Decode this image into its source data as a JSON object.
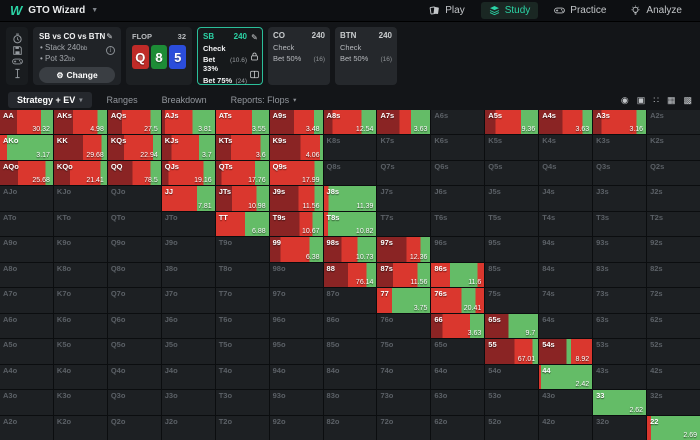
{
  "app": {
    "logo": "W",
    "name": "GTO Wizard"
  },
  "nav": {
    "items": [
      {
        "label": "Play",
        "active": false
      },
      {
        "label": "Study",
        "active": true
      },
      {
        "label": "Practice",
        "active": false
      },
      {
        "label": "Analyze",
        "active": false
      }
    ]
  },
  "sidebar": {
    "icons": [
      "timer-icon",
      "save-icon",
      "gamepad-icon",
      "text-cursor-icon"
    ]
  },
  "config": {
    "title": "SB vs CO vs BTN",
    "bullets": [
      {
        "label": "Stack 240",
        "unit": "bb"
      },
      {
        "label": "Pot 32",
        "unit": "bb"
      }
    ],
    "change_label": "Change"
  },
  "flop": {
    "label": "FLOP",
    "pot": "32",
    "cards": [
      {
        "rank": "Q",
        "suit": "heart",
        "color": "#bf2b28"
      },
      {
        "rank": "8",
        "suit": "club",
        "color": "#1d8c36"
      },
      {
        "rank": "5",
        "suit": "diamond",
        "color": "#2b4ddb"
      }
    ]
  },
  "players": [
    {
      "name": "SB",
      "stack": "240",
      "active": true,
      "actions": [
        {
          "label": "Check",
          "value": ""
        },
        {
          "label": "Bet 33%",
          "value": "(10.6)"
        },
        {
          "label": "Bet 75%",
          "value": "(24)"
        }
      ]
    },
    {
      "name": "CO",
      "stack": "240",
      "active": false,
      "actions": [
        {
          "label": "Check",
          "value": ""
        },
        {
          "label": "Bet 50%",
          "value": "(16)"
        }
      ]
    },
    {
      "name": "BTN",
      "stack": "240",
      "active": false,
      "actions": [
        {
          "label": "Check",
          "value": ""
        },
        {
          "label": "Bet 50%",
          "value": "(16)"
        }
      ]
    }
  ],
  "tabs": [
    {
      "label": "Strategy + EV",
      "active": true,
      "dropdown": true
    },
    {
      "label": "Ranges",
      "active": false,
      "dropdown": false
    },
    {
      "label": "Breakdown",
      "active": false,
      "dropdown": false
    },
    {
      "label": "Reports: Flops",
      "active": false,
      "dropdown": true
    }
  ],
  "view_icons": [
    {
      "name": "strategy-dot-view-icon",
      "glyph": "◉"
    },
    {
      "name": "compact-view-icon",
      "glyph": "▣"
    },
    {
      "name": "dots-view-icon",
      "glyph": "∷"
    },
    {
      "name": "grid-view-icon",
      "glyph": "▦"
    },
    {
      "name": "filled-grid-view-icon",
      "glyph": "▩"
    }
  ],
  "colors": {
    "accent_teal": "#2bd3a5",
    "segments": {
      "dr": "#8a2424",
      "r": "#da372e",
      "g": "#64bc67"
    },
    "fold_bg": "#1d2023"
  },
  "matrix": {
    "rows": [
      [
        {
          "h": "AA",
          "ev": "30.32",
          "seg": "dr32 r45 g23"
        },
        {
          "h": "AKs",
          "ev": "4.98",
          "seg": "dr36 r46 g18"
        },
        {
          "h": "AQs",
          "ev": "27.5",
          "seg": "dr26 r54 g20"
        },
        {
          "h": "AJs",
          "ev": "3.81",
          "seg": "dr6 r52 g42"
        },
        {
          "h": "ATs",
          "ev": "3.55",
          "seg": "r68 g32"
        },
        {
          "h": "A9s",
          "ev": "3.48",
          "seg": "dr45 r38 g17"
        },
        {
          "h": "A8s",
          "ev": "12.54",
          "seg": "dr16 r56 g28"
        },
        {
          "h": "A7s",
          "ev": "3.63",
          "seg": "dr42 r22 g36"
        },
        {
          "h": "A6s"
        },
        {
          "h": "A5s",
          "ev": "9.36",
          "seg": "dr20 r48 g32"
        },
        {
          "h": "A4s",
          "ev": "3.63",
          "seg": "dr44 r38 g18"
        },
        {
          "h": "A3s",
          "ev": "3.16",
          "seg": "dr16 r66 g18"
        },
        {
          "h": "A2s"
        }
      ],
      [
        {
          "h": "AKo",
          "ev": "3.17",
          "seg": "r13 g87"
        },
        {
          "h": "KK",
          "ev": "29.68",
          "seg": "dr55 r35 g10"
        },
        {
          "h": "KQs",
          "ev": "22.94",
          "seg": "dr30 r55 g15"
        },
        {
          "h": "KJs",
          "ev": "3.7",
          "seg": "dr18 r52 g30"
        },
        {
          "h": "KTs",
          "ev": "3.6",
          "seg": "dr28 r56 g16"
        },
        {
          "h": "K9s",
          "ev": "4.06",
          "seg": "dr58 r36 g6"
        },
        {
          "h": "K8s"
        },
        {
          "h": "K7s"
        },
        {
          "h": "K6s"
        },
        {
          "h": "K5s"
        },
        {
          "h": "K4s"
        },
        {
          "h": "K3s"
        },
        {
          "h": "K2s"
        }
      ],
      [
        {
          "h": "AQo",
          "ev": "25.68",
          "seg": "dr34 r52 g14"
        },
        {
          "h": "KQo",
          "ev": "21.41",
          "seg": "dr30 r58 g12"
        },
        {
          "h": "QQ",
          "ev": "78.5",
          "seg": "dr46 r34 g20"
        },
        {
          "h": "QJs",
          "ev": "19.16",
          "seg": "dr12 r66 g22"
        },
        {
          "h": "QTs",
          "ev": "17.76",
          "seg": "dr10 r64 g26"
        },
        {
          "h": "Q9s",
          "ev": "17.99",
          "seg": "r84 g16"
        },
        {
          "h": "Q8s"
        },
        {
          "h": "Q7s"
        },
        {
          "h": "Q6s"
        },
        {
          "h": "Q5s"
        },
        {
          "h": "Q4s"
        },
        {
          "h": "Q3s"
        },
        {
          "h": "Q2s"
        }
      ],
      [
        {
          "h": "AJo"
        },
        {
          "h": "KJo"
        },
        {
          "h": "QJo"
        },
        {
          "h": "JJ",
          "ev": "7.81",
          "seg": "r66 g34"
        },
        {
          "h": "JTs",
          "ev": "10.98",
          "seg": "dr30 r46 g24"
        },
        {
          "h": "J9s",
          "ev": "11.56",
          "seg": "dr54 r30 g16"
        },
        {
          "h": "J8s",
          "ev": "11.39",
          "seg": "r9 g91"
        },
        {
          "h": "J7s"
        },
        {
          "h": "J6s"
        },
        {
          "h": "J5s"
        },
        {
          "h": "J4s"
        },
        {
          "h": "J3s"
        },
        {
          "h": "J2s"
        }
      ],
      [
        {
          "h": "ATo"
        },
        {
          "h": "KTo"
        },
        {
          "h": "QTo"
        },
        {
          "h": "JTo"
        },
        {
          "h": "TT",
          "ev": "6.88",
          "seg": "r55 g45"
        },
        {
          "h": "T9s",
          "ev": "10.67",
          "seg": "dr56 r24 g20"
        },
        {
          "h": "T8s",
          "ev": "10.82",
          "seg": "r8 g92"
        },
        {
          "h": "T7s"
        },
        {
          "h": "T6s"
        },
        {
          "h": "T5s"
        },
        {
          "h": "T4s"
        },
        {
          "h": "T3s"
        },
        {
          "h": "T2s"
        }
      ],
      [
        {
          "h": "A9o"
        },
        {
          "h": "K9o"
        },
        {
          "h": "Q9o"
        },
        {
          "h": "J9o"
        },
        {
          "h": "T9o"
        },
        {
          "h": "99",
          "ev": "6.38",
          "seg": "dr20 r55 g25"
        },
        {
          "h": "98s",
          "ev": "10.73",
          "seg": "dr34 r30 g36"
        },
        {
          "h": "97s",
          "ev": "12.36",
          "seg": "dr56 r26 g18"
        },
        {
          "h": "96s"
        },
        {
          "h": "95s"
        },
        {
          "h": "94s"
        },
        {
          "h": "93s"
        },
        {
          "h": "92s"
        }
      ],
      [
        {
          "h": "A8o"
        },
        {
          "h": "K8o"
        },
        {
          "h": "Q8o"
        },
        {
          "h": "J8o"
        },
        {
          "h": "T8o"
        },
        {
          "h": "98o"
        },
        {
          "h": "88",
          "ev": "76.14",
          "seg": "dr46 r36 g18"
        },
        {
          "h": "87s",
          "ev": "11.56",
          "seg": "dr30 r46 g24"
        },
        {
          "h": "86s",
          "ev": "11.6",
          "seg": "r36 g52 r12"
        },
        {
          "h": "85s"
        },
        {
          "h": "84s"
        },
        {
          "h": "83s"
        },
        {
          "h": "82s"
        }
      ],
      [
        {
          "h": "A7o"
        },
        {
          "h": "K7o"
        },
        {
          "h": "Q7o"
        },
        {
          "h": "J7o"
        },
        {
          "h": "T7o"
        },
        {
          "h": "97o"
        },
        {
          "h": "87o"
        },
        {
          "h": "77",
          "ev": "3.75",
          "seg": "r28 g72"
        },
        {
          "h": "76s",
          "ev": "20.41",
          "seg": "r58 g26 r16"
        },
        {
          "h": "75s"
        },
        {
          "h": "74s"
        },
        {
          "h": "73s"
        },
        {
          "h": "72s"
        }
      ],
      [
        {
          "h": "A6o"
        },
        {
          "h": "K6o"
        },
        {
          "h": "Q6o"
        },
        {
          "h": "J6o"
        },
        {
          "h": "T6o"
        },
        {
          "h": "96o"
        },
        {
          "h": "86o"
        },
        {
          "h": "76o"
        },
        {
          "h": "66",
          "ev": "3.63",
          "seg": "dr22 r52 g26"
        },
        {
          "h": "65s",
          "ev": "9.7",
          "seg": "dr44 g56"
        },
        {
          "h": "64s"
        },
        {
          "h": "63s"
        },
        {
          "h": "62s"
        }
      ],
      [
        {
          "h": "A5o"
        },
        {
          "h": "K5o"
        },
        {
          "h": "Q5o"
        },
        {
          "h": "J5o"
        },
        {
          "h": "T5o"
        },
        {
          "h": "95o"
        },
        {
          "h": "85o"
        },
        {
          "h": "75o"
        },
        {
          "h": "65o"
        },
        {
          "h": "55",
          "ev": "67.01",
          "seg": "dr56 r34 g10"
        },
        {
          "h": "54s",
          "ev": "8.92",
          "seg": "dr52 g8 r40"
        },
        {
          "h": "53s"
        },
        {
          "h": "52s"
        }
      ],
      [
        {
          "h": "A4o"
        },
        {
          "h": "K4o"
        },
        {
          "h": "Q4o"
        },
        {
          "h": "J4o"
        },
        {
          "h": "T4o"
        },
        {
          "h": "94o"
        },
        {
          "h": "84o"
        },
        {
          "h": "74o"
        },
        {
          "h": "64o"
        },
        {
          "h": "54o"
        },
        {
          "h": "44",
          "ev": "2.42",
          "seg": "r4 g96"
        },
        {
          "h": "43s"
        },
        {
          "h": "42s"
        }
      ],
      [
        {
          "h": "A3o"
        },
        {
          "h": "K3o"
        },
        {
          "h": "Q3o"
        },
        {
          "h": "J3o"
        },
        {
          "h": "T3o"
        },
        {
          "h": "93o"
        },
        {
          "h": "83o"
        },
        {
          "h": "73o"
        },
        {
          "h": "63o"
        },
        {
          "h": "53o"
        },
        {
          "h": "43o"
        },
        {
          "h": "33",
          "ev": "2.62",
          "seg": "g100"
        },
        {
          "h": "32s"
        }
      ],
      [
        {
          "h": "A2o"
        },
        {
          "h": "K2o"
        },
        {
          "h": "Q2o"
        },
        {
          "h": "J2o"
        },
        {
          "h": "T2o"
        },
        {
          "h": "92o"
        },
        {
          "h": "82o"
        },
        {
          "h": "72o"
        },
        {
          "h": "62o"
        },
        {
          "h": "52o"
        },
        {
          "h": "42o"
        },
        {
          "h": "32o"
        },
        {
          "h": "22",
          "ev": "2.69",
          "seg": "r8 g92"
        }
      ]
    ]
  }
}
